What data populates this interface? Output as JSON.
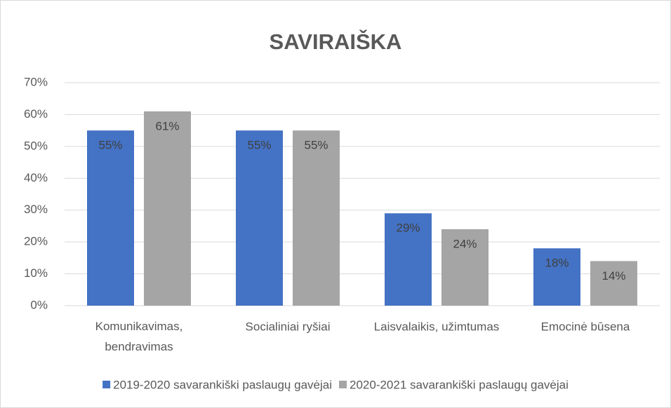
{
  "chart_data": {
    "type": "bar",
    "title": "SAVIRAIŠKA",
    "categories": [
      "Komunikavimas, bendravimas",
      "Socialiniai ryšiai",
      "Laisvalaikis, užimtumas",
      "Emocinė būsena"
    ],
    "series": [
      {
        "name": "2019-2020 savarankiški paslaugų gavėjai",
        "color": "#4472c4",
        "values": [
          55,
          55,
          29,
          18
        ],
        "value_labels": [
          "55%",
          "55%",
          "29%",
          "18%"
        ]
      },
      {
        "name": "2020-2021 savarankiški paslaugų gavėjai",
        "color": "#a5a5a5",
        "values": [
          61,
          55,
          24,
          14
        ],
        "value_labels": [
          "61%",
          "55%",
          "24%",
          "14%"
        ]
      }
    ],
    "ylim": [
      0,
      70
    ],
    "yticks": [
      {
        "value": 0,
        "label": "0%"
      },
      {
        "value": 10,
        "label": "10%"
      },
      {
        "value": 20,
        "label": "20%"
      },
      {
        "value": 30,
        "label": "30%"
      },
      {
        "value": 40,
        "label": "40%"
      },
      {
        "value": 50,
        "label": "50%"
      },
      {
        "value": 60,
        "label": "60%"
      },
      {
        "value": 70,
        "label": "70%"
      }
    ],
    "grid": true,
    "legend": "bottom"
  }
}
